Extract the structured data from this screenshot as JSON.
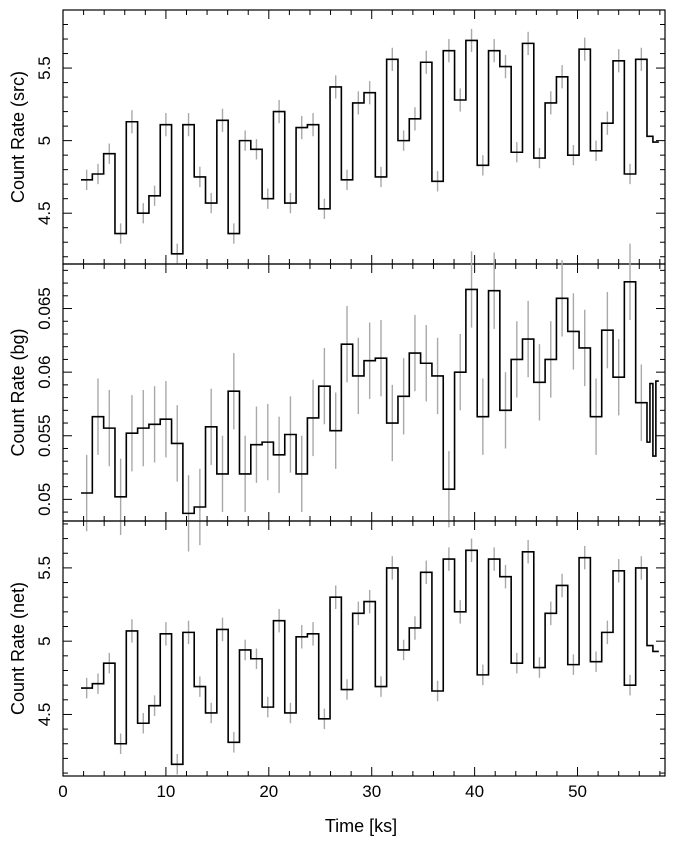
{
  "chart_data": [
    {
      "type": "line",
      "ylabel": "Count Rate (src)",
      "xlabel": "",
      "xlim": [
        0,
        58.5
      ],
      "ylim": [
        4.15,
        5.9
      ],
      "x_ticks": [
        "0",
        "10",
        "20",
        "30",
        "40",
        "50"
      ],
      "y_ticks": [
        4.5,
        5,
        5.5
      ],
      "y_tick_labels": [
        "4.5",
        "5",
        "5.5"
      ],
      "bin_width_ks": 1.1,
      "x": [
        2.3,
        3.4,
        4.5,
        5.6,
        6.7,
        7.8,
        8.9,
        10.0,
        11.1,
        12.2,
        13.3,
        14.4,
        15.5,
        16.6,
        17.7,
        18.8,
        19.9,
        21.0,
        22.1,
        23.2,
        24.3,
        25.4,
        26.5,
        27.6,
        28.7,
        29.8,
        30.9,
        32.0,
        33.1,
        34.2,
        35.3,
        36.4,
        37.5,
        38.6,
        39.7,
        40.8,
        41.9,
        43.0,
        44.1,
        45.2,
        46.3,
        47.4,
        48.5,
        49.6,
        50.7,
        51.8,
        52.9,
        54.0,
        55.1,
        56.2
      ],
      "y": [
        4.73,
        4.77,
        4.91,
        4.36,
        5.13,
        4.5,
        4.62,
        5.11,
        4.22,
        5.11,
        4.75,
        4.57,
        5.14,
        4.36,
        5.0,
        4.94,
        4.6,
        5.2,
        4.57,
        5.09,
        5.11,
        4.53,
        5.37,
        4.73,
        5.26,
        5.33,
        4.75,
        5.56,
        5.0,
        5.15,
        5.54,
        4.72,
        5.62,
        5.28,
        5.69,
        4.83,
        5.62,
        5.51,
        4.92,
        5.67,
        4.88,
        5.26,
        5.44,
        4.9,
        5.63,
        4.93,
        5.12,
        5.55,
        4.77,
        5.56
      ],
      "yerr": [
        0.07,
        0.07,
        0.07,
        0.07,
        0.08,
        0.07,
        0.07,
        0.08,
        0.07,
        0.08,
        0.07,
        0.07,
        0.08,
        0.07,
        0.07,
        0.07,
        0.07,
        0.08,
        0.07,
        0.08,
        0.08,
        0.07,
        0.08,
        0.07,
        0.08,
        0.08,
        0.07,
        0.08,
        0.07,
        0.08,
        0.08,
        0.07,
        0.08,
        0.08,
        0.08,
        0.07,
        0.08,
        0.08,
        0.07,
        0.08,
        0.07,
        0.08,
        0.08,
        0.07,
        0.08,
        0.07,
        0.08,
        0.08,
        0.07,
        0.08
      ],
      "tail": {
        "x_end": 57.9,
        "values": [
          5.03,
          4.99
        ]
      },
      "grid": false
    },
    {
      "type": "line",
      "ylabel": "Count Rate (bg)",
      "xlabel": "",
      "xlim": [
        0,
        58.5
      ],
      "ylim": [
        0.0483,
        0.0685
      ],
      "x_ticks": [
        "0",
        "10",
        "20",
        "30",
        "40",
        "50"
      ],
      "y_ticks": [
        0.05,
        0.055,
        0.06,
        0.065
      ],
      "y_tick_labels": [
        "0.05",
        "0.055",
        "0.06",
        "0.065"
      ],
      "bin_width_ks": 1.1,
      "x": [
        2.3,
        3.4,
        4.5,
        5.6,
        6.7,
        7.8,
        8.9,
        10.0,
        11.1,
        12.2,
        13.3,
        14.4,
        15.5,
        16.6,
        17.7,
        18.8,
        19.9,
        21.0,
        22.1,
        23.2,
        24.3,
        25.4,
        26.5,
        27.6,
        28.7,
        29.8,
        30.9,
        32.0,
        33.1,
        34.2,
        35.3,
        36.4,
        37.5,
        38.6,
        39.7,
        40.8,
        41.9,
        43.0,
        44.1,
        45.2,
        46.3,
        47.4,
        48.5,
        49.6,
        50.7,
        51.8,
        52.9,
        54.0,
        55.1,
        56.2
      ],
      "y": [
        0.0505,
        0.0565,
        0.0556,
        0.0502,
        0.0552,
        0.0556,
        0.0559,
        0.0563,
        0.0544,
        0.0489,
        0.0494,
        0.0557,
        0.052,
        0.0585,
        0.052,
        0.0543,
        0.0545,
        0.0535,
        0.0551,
        0.052,
        0.0564,
        0.0589,
        0.0554,
        0.0622,
        0.0597,
        0.0609,
        0.0611,
        0.056,
        0.0581,
        0.0615,
        0.0607,
        0.0597,
        0.0508,
        0.06,
        0.0665,
        0.0565,
        0.0664,
        0.057,
        0.061,
        0.0626,
        0.0592,
        0.061,
        0.0658,
        0.0632,
        0.0619,
        0.0565,
        0.0633,
        0.0596,
        0.0671,
        0.0576
      ],
      "yerr": [
        0.003,
        0.003,
        0.003,
        0.003,
        0.003,
        0.003,
        0.003,
        0.003,
        0.003,
        0.003,
        0.003,
        0.003,
        0.003,
        0.003,
        0.003,
        0.003,
        0.003,
        0.003,
        0.003,
        0.003,
        0.003,
        0.003,
        0.003,
        0.003,
        0.003,
        0.003,
        0.003,
        0.003,
        0.003,
        0.003,
        0.003,
        0.003,
        0.003,
        0.003,
        0.003,
        0.003,
        0.003,
        0.003,
        0.003,
        0.003,
        0.003,
        0.003,
        0.003,
        0.003,
        0.003,
        0.003,
        0.003,
        0.003,
        0.003,
        0.003
      ],
      "tail": {
        "x_end": 57.9,
        "values": [
          0.0545,
          0.0591,
          0.0534,
          0.0593
        ]
      },
      "grid": false
    },
    {
      "type": "line",
      "ylabel": "Count Rate (net)",
      "xlabel": "Time [ks]",
      "xlim": [
        0,
        58.5
      ],
      "ylim": [
        4.08,
        5.82
      ],
      "x_ticks": [
        "0",
        "10",
        "20",
        "30",
        "40",
        "50"
      ],
      "y_ticks": [
        4.5,
        5,
        5.5
      ],
      "y_tick_labels": [
        "4.5",
        "5",
        "5.5"
      ],
      "bin_width_ks": 1.1,
      "x": [
        2.3,
        3.4,
        4.5,
        5.6,
        6.7,
        7.8,
        8.9,
        10.0,
        11.1,
        12.2,
        13.3,
        14.4,
        15.5,
        16.6,
        17.7,
        18.8,
        19.9,
        21.0,
        22.1,
        23.2,
        24.3,
        25.4,
        26.5,
        27.6,
        28.7,
        29.8,
        30.9,
        32.0,
        33.1,
        34.2,
        35.3,
        36.4,
        37.5,
        38.6,
        39.7,
        40.8,
        41.9,
        43.0,
        44.1,
        45.2,
        46.3,
        47.4,
        48.5,
        49.6,
        50.7,
        51.8,
        52.9,
        54.0,
        55.1,
        56.2
      ],
      "y": [
        4.68,
        4.71,
        4.85,
        4.3,
        5.07,
        4.44,
        4.56,
        5.05,
        4.16,
        5.06,
        4.69,
        4.51,
        5.08,
        4.31,
        4.94,
        4.88,
        4.55,
        5.14,
        4.51,
        5.03,
        5.05,
        4.47,
        5.3,
        4.67,
        5.19,
        5.27,
        4.69,
        5.5,
        4.94,
        5.09,
        5.47,
        4.66,
        5.56,
        5.2,
        5.62,
        4.77,
        5.56,
        5.44,
        4.85,
        5.61,
        4.82,
        5.19,
        5.38,
        4.84,
        5.57,
        4.86,
        5.06,
        5.48,
        4.7,
        5.5
      ],
      "yerr": [
        0.07,
        0.07,
        0.07,
        0.07,
        0.08,
        0.07,
        0.07,
        0.08,
        0.07,
        0.08,
        0.07,
        0.07,
        0.08,
        0.07,
        0.07,
        0.07,
        0.07,
        0.08,
        0.07,
        0.08,
        0.08,
        0.07,
        0.08,
        0.07,
        0.08,
        0.08,
        0.07,
        0.08,
        0.07,
        0.08,
        0.08,
        0.07,
        0.08,
        0.08,
        0.08,
        0.07,
        0.08,
        0.08,
        0.07,
        0.08,
        0.07,
        0.08,
        0.08,
        0.07,
        0.08,
        0.07,
        0.08,
        0.08,
        0.07,
        0.08
      ],
      "tail": {
        "x_end": 57.9,
        "values": [
          4.97,
          4.93
        ]
      },
      "grid": false
    }
  ],
  "style": {
    "line_color": "#000000",
    "errorbar_color": "#a9a9a9",
    "background": "#ffffff"
  }
}
